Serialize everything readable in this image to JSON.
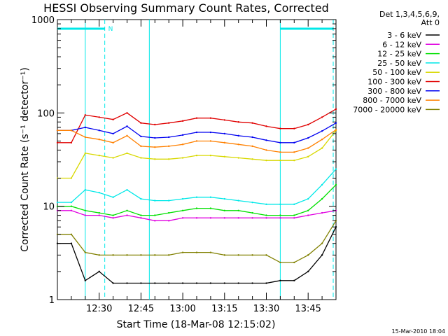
{
  "chart_data": {
    "type": "line",
    "title": "HESSI Observing Summary Count Rates, Corrected",
    "xlabel": "Start Time (18-Mar-08 12:15:02)",
    "ylabel": "Corrected Count Rate (s⁻¹ detector⁻¹)",
    "y_scale": "log",
    "ylim": [
      1,
      1000
    ],
    "xlim_minutes": [
      0,
      100
    ],
    "x_ticks": [
      {
        "label": "12:30",
        "minute": 15
      },
      {
        "label": "12:45",
        "minute": 30
      },
      {
        "label": "13:00",
        "minute": 45
      },
      {
        "label": "13:15",
        "minute": 60
      },
      {
        "label": "13:30",
        "minute": 75
      },
      {
        "label": "13:45",
        "minute": 90
      }
    ],
    "y_ticks": [
      {
        "label": "1",
        "value": 1
      },
      {
        "label": "10",
        "value": 10
      },
      {
        "label": "100",
        "value": 100
      },
      {
        "label": "1000",
        "value": 1000
      }
    ],
    "legend_header": [
      "Det 1,3,4,5,6,9,",
      "Att 0"
    ],
    "legend_position": "right",
    "series": [
      {
        "name": "3 - 6 keV",
        "color": "#000000",
        "values": [
          4,
          4,
          1.6,
          2,
          1.5,
          1.5,
          1.5,
          1.5,
          1.5,
          1.5,
          1.5,
          1.5,
          1.5,
          1.5,
          1.5,
          1.5,
          1.6,
          1.6,
          2,
          3,
          6
        ]
      },
      {
        "name": "6 - 12 keV",
        "color": "#e000e0",
        "values": [
          9,
          9,
          8,
          8,
          7.5,
          8,
          7.5,
          7,
          7,
          7.5,
          7.5,
          7.5,
          7.5,
          7.5,
          7.5,
          7.5,
          7.5,
          7.5,
          8,
          8.5,
          9
        ]
      },
      {
        "name": "12 - 25 keV",
        "color": "#00e000",
        "values": [
          10,
          10,
          9,
          8.5,
          8,
          9,
          8,
          8,
          8.5,
          9,
          9.5,
          9.5,
          9,
          9,
          8.5,
          8,
          8,
          8,
          9,
          12,
          17
        ]
      },
      {
        "name": "25 - 50 keV",
        "color": "#00e8e8",
        "values": [
          11,
          11,
          15,
          14,
          12.5,
          15,
          12,
          11.5,
          11.5,
          12,
          12.5,
          12.5,
          12,
          11.5,
          11,
          10.5,
          10.5,
          10.5,
          12,
          17,
          25
        ]
      },
      {
        "name": "50 - 100 keV",
        "color": "#d8d800",
        "values": [
          20,
          20,
          37,
          35,
          33,
          37,
          33,
          32,
          32,
          33,
          35,
          35,
          34,
          33,
          32,
          31,
          31,
          31,
          34,
          42,
          65
        ]
      },
      {
        "name": "100 - 300 keV",
        "color": "#e00000",
        "values": [
          48,
          48,
          95,
          90,
          85,
          100,
          78,
          75,
          78,
          82,
          88,
          88,
          84,
          80,
          78,
          72,
          68,
          68,
          75,
          90,
          110
        ]
      },
      {
        "name": "300 - 800 keV",
        "color": "#0000f0",
        "values": [
          65,
          65,
          70,
          65,
          60,
          72,
          56,
          54,
          55,
          58,
          62,
          62,
          60,
          57,
          55,
          51,
          48,
          48,
          54,
          64,
          78
        ]
      },
      {
        "name": "800 - 7000 keV",
        "color": "#ff8000",
        "values": [
          65,
          65,
          55,
          52,
          48,
          57,
          44,
          43,
          44,
          46,
          50,
          50,
          48,
          46,
          44,
          40,
          38,
          38,
          42,
          52,
          66
        ]
      },
      {
        "name": "7000 - 20000 keV",
        "color": "#808000",
        "values": [
          5,
          5,
          3.2,
          3,
          3,
          3,
          3,
          3,
          3,
          3.2,
          3.2,
          3.2,
          3,
          3,
          3,
          3,
          2.5,
          2.5,
          3,
          4,
          7
        ]
      }
    ],
    "markers": {
      "bar_label": "N",
      "solid_lines_minutes": [
        33,
        10,
        80
      ],
      "dashed_lines_minutes": [
        17,
        99
      ]
    }
  },
  "footer": {
    "timestamp": "15-Mar-2010 18:04"
  },
  "colors": {
    "axis": "#000000",
    "marker": "#00e8e8",
    "background": "#ffffff"
  }
}
